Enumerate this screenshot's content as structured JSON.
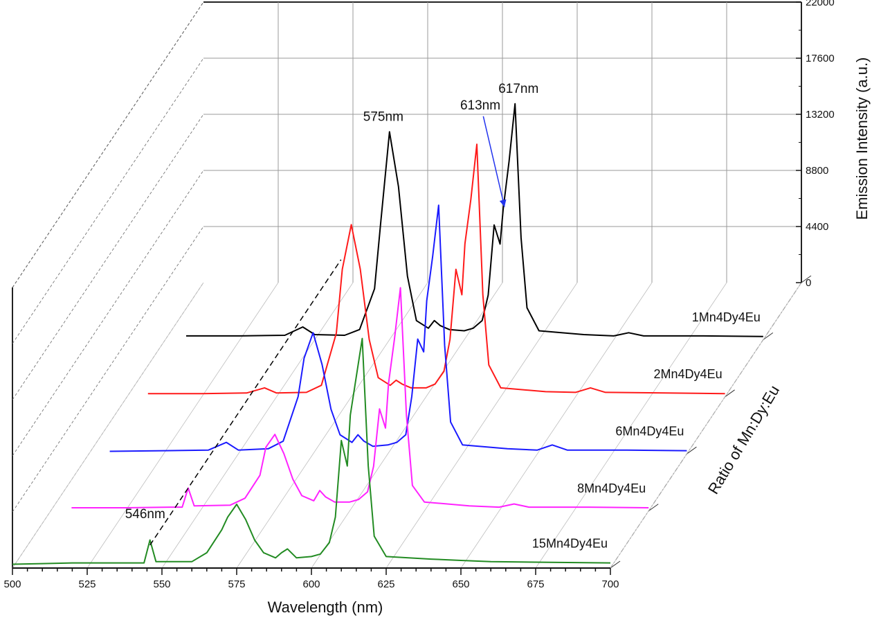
{
  "chart_data": {
    "type": "line",
    "subtype": "3d-waterfall",
    "xlabel": "Wavelength (nm)",
    "ylabel": "Ratio of Mn:Dy:Eu",
    "zlabel": "Emission Intensity (a.u.)",
    "xlim": [
      500,
      700
    ],
    "zlim": [
      0,
      22000
    ],
    "x_ticks": [
      "500",
      "525",
      "550",
      "575",
      "600",
      "625",
      "650",
      "675",
      "700"
    ],
    "z_ticks": [
      "0",
      "4400",
      "8800",
      "13200",
      "17600",
      "22000"
    ],
    "grid": true,
    "colors": {
      "1Mn4Dy4Eu": "#000000",
      "2Mn4Dy4Eu": "#ff1a1a",
      "6Mn4Dy4Eu": "#1a1aff",
      "8Mn4Dy4Eu": "#ff22ff",
      "15Mn4Dy4Eu": "#228b22",
      "arrow": "#2233ee"
    },
    "series": [
      {
        "name": "1Mn4Dy4Eu",
        "points": [
          [
            507,
            300
          ],
          [
            525,
            300
          ],
          [
            540,
            350
          ],
          [
            546,
            1000
          ],
          [
            550,
            400
          ],
          [
            560,
            350
          ],
          [
            565,
            800
          ],
          [
            570,
            4000
          ],
          [
            572,
            9000
          ],
          [
            575,
            16300
          ],
          [
            578,
            12000
          ],
          [
            581,
            5000
          ],
          [
            584,
            1500
          ],
          [
            588,
            900
          ],
          [
            590,
            1500
          ],
          [
            592,
            1100
          ],
          [
            595,
            800
          ],
          [
            600,
            700
          ],
          [
            603,
            900
          ],
          [
            606,
            1500
          ],
          [
            608,
            3500
          ],
          [
            610,
            9000
          ],
          [
            612,
            7500
          ],
          [
            613,
            10200
          ],
          [
            615,
            14000
          ],
          [
            617,
            18500
          ],
          [
            619,
            8000
          ],
          [
            621,
            2500
          ],
          [
            625,
            700
          ],
          [
            640,
            400
          ],
          [
            650,
            300
          ],
          [
            655,
            550
          ],
          [
            660,
            300
          ],
          [
            680,
            300
          ],
          [
            700,
            250
          ]
        ]
      },
      {
        "name": "2Mn4Dy4Eu",
        "points": [
          [
            507,
            250
          ],
          [
            525,
            250
          ],
          [
            540,
            300
          ],
          [
            546,
            700
          ],
          [
            550,
            300
          ],
          [
            560,
            350
          ],
          [
            565,
            900
          ],
          [
            570,
            5000
          ],
          [
            572,
            10000
          ],
          [
            575,
            13500
          ],
          [
            578,
            10000
          ],
          [
            581,
            4500
          ],
          [
            584,
            1500
          ],
          [
            588,
            900
          ],
          [
            590,
            1300
          ],
          [
            592,
            1000
          ],
          [
            595,
            700
          ],
          [
            600,
            700
          ],
          [
            603,
            1000
          ],
          [
            606,
            2000
          ],
          [
            608,
            4500
          ],
          [
            610,
            10000
          ],
          [
            612,
            8000
          ],
          [
            613,
            12000
          ],
          [
            615,
            15500
          ],
          [
            617,
            19800
          ],
          [
            619,
            8000
          ],
          [
            621,
            2500
          ],
          [
            625,
            700
          ],
          [
            640,
            400
          ],
          [
            650,
            350
          ],
          [
            655,
            700
          ],
          [
            660,
            350
          ],
          [
            680,
            300
          ],
          [
            700,
            250
          ]
        ]
      },
      {
        "name": "6Mn4Dy4Eu",
        "points": [
          [
            507,
            200
          ],
          [
            525,
            250
          ],
          [
            540,
            300
          ],
          [
            546,
            900
          ],
          [
            550,
            300
          ],
          [
            560,
            400
          ],
          [
            565,
            1000
          ],
          [
            570,
            4500
          ],
          [
            572,
            7500
          ],
          [
            575,
            9500
          ],
          [
            578,
            7000
          ],
          [
            581,
            3500
          ],
          [
            584,
            1500
          ],
          [
            588,
            900
          ],
          [
            590,
            1500
          ],
          [
            592,
            1000
          ],
          [
            595,
            600
          ],
          [
            600,
            700
          ],
          [
            603,
            900
          ],
          [
            606,
            1500
          ],
          [
            608,
            4500
          ],
          [
            610,
            9000
          ],
          [
            612,
            8000
          ],
          [
            613,
            12000
          ],
          [
            615,
            15500
          ],
          [
            617,
            19500
          ],
          [
            619,
            8500
          ],
          [
            621,
            2500
          ],
          [
            625,
            700
          ],
          [
            640,
            400
          ],
          [
            650,
            300
          ],
          [
            655,
            700
          ],
          [
            660,
            300
          ],
          [
            680,
            300
          ],
          [
            700,
            250
          ]
        ]
      },
      {
        "name": "8Mn4Dy4Eu",
        "points": [
          [
            507,
            250
          ],
          [
            525,
            250
          ],
          [
            540,
            300
          ],
          [
            544,
            300
          ],
          [
            546,
            1800
          ],
          [
            548,
            400
          ],
          [
            560,
            450
          ],
          [
            565,
            1000
          ],
          [
            570,
            2800
          ],
          [
            572,
            5000
          ],
          [
            575,
            6000
          ],
          [
            578,
            4500
          ],
          [
            581,
            2500
          ],
          [
            584,
            1200
          ],
          [
            588,
            800
          ],
          [
            590,
            1600
          ],
          [
            592,
            1100
          ],
          [
            595,
            700
          ],
          [
            600,
            700
          ],
          [
            603,
            900
          ],
          [
            606,
            1500
          ],
          [
            608,
            3500
          ],
          [
            610,
            8000
          ],
          [
            612,
            6500
          ],
          [
            613,
            10000
          ],
          [
            615,
            13500
          ],
          [
            617,
            17500
          ],
          [
            619,
            7500
          ],
          [
            621,
            2000
          ],
          [
            625,
            700
          ],
          [
            640,
            400
          ],
          [
            650,
            300
          ],
          [
            655,
            550
          ],
          [
            660,
            300
          ],
          [
            680,
            300
          ],
          [
            700,
            250
          ]
        ]
      },
      {
        "name": "15Mn4Dy4Eu",
        "points": [
          [
            500,
            300
          ],
          [
            510,
            350
          ],
          [
            520,
            400
          ],
          [
            530,
            400
          ],
          [
            540,
            400
          ],
          [
            544,
            400
          ],
          [
            546,
            2200
          ],
          [
            548,
            500
          ],
          [
            555,
            500
          ],
          [
            560,
            500
          ],
          [
            565,
            1200
          ],
          [
            570,
            3000
          ],
          [
            572,
            4000
          ],
          [
            575,
            5000
          ],
          [
            578,
            3800
          ],
          [
            581,
            2200
          ],
          [
            584,
            1200
          ],
          [
            588,
            800
          ],
          [
            590,
            1200
          ],
          [
            592,
            1500
          ],
          [
            595,
            800
          ],
          [
            600,
            900
          ],
          [
            603,
            1100
          ],
          [
            606,
            2000
          ],
          [
            608,
            4000
          ],
          [
            610,
            10000
          ],
          [
            612,
            8000
          ],
          [
            613,
            12000
          ],
          [
            615,
            15000
          ],
          [
            617,
            18000
          ],
          [
            619,
            8000
          ],
          [
            621,
            2500
          ],
          [
            625,
            900
          ],
          [
            640,
            700
          ],
          [
            650,
            600
          ],
          [
            660,
            500
          ],
          [
            680,
            450
          ],
          [
            700,
            400
          ]
        ]
      }
    ],
    "annotations": [
      {
        "text": "575nm"
      },
      {
        "text": "613nm"
      },
      {
        "text": "617nm"
      },
      {
        "text": "546nm"
      }
    ]
  }
}
